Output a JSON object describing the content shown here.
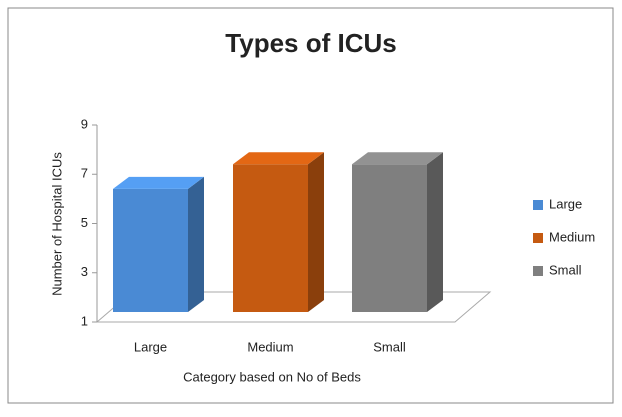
{
  "chart_data": {
    "type": "bar3d",
    "title": "Types of ICUs",
    "x_label": "Category based on No of Beds",
    "y_label": "Number of Hospital ICUs",
    "categories": [
      "Large",
      "Medium",
      "Small"
    ],
    "values": [
      6,
      7,
      7
    ],
    "colors": [
      "#4a8ad4",
      "#c55a11",
      "#7f7f7f"
    ],
    "ylim": [
      1,
      9
    ],
    "yticks": [
      1,
      3,
      5,
      7,
      9
    ],
    "legend": "right"
  }
}
